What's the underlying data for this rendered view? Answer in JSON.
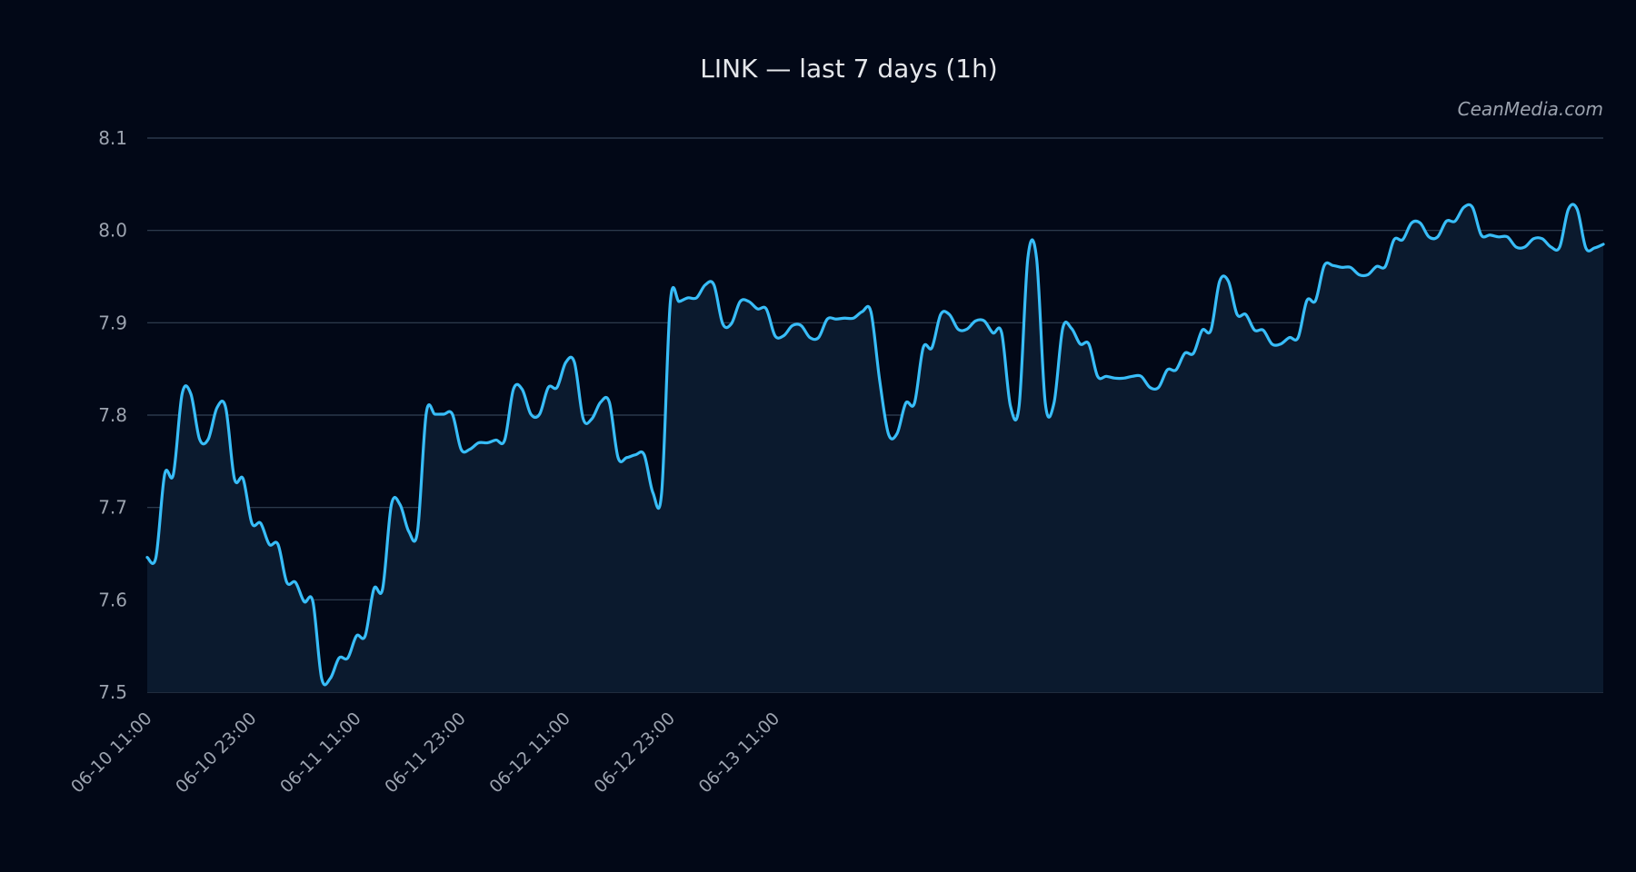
{
  "chart_data": {
    "type": "area",
    "title": "LINK — last 7 days (1h)",
    "watermark": "CeanMedia.com",
    "xlabel": "",
    "ylabel": "",
    "ylim": [
      7.5,
      8.1
    ],
    "yticks": [
      7.5,
      7.6,
      7.7,
      7.8,
      7.9,
      8.0,
      8.1
    ],
    "ytick_labels": [
      "7.5",
      "7.6",
      "7.7",
      "7.8",
      "7.9",
      "8.0",
      "8.1"
    ],
    "x_start": "06-10 11:00",
    "x_interval_hours": 1,
    "xtick_labels": [
      "06-10 11:00",
      "06-10 23:00",
      "06-11 11:00",
      "06-11 23:00",
      "06-12 11:00",
      "06-12 23:00",
      "06-13 11:00"
    ],
    "xtick_step_hours": 12,
    "grid": true,
    "colors": {
      "line": "#38bdf8",
      "fill": "#0b1a2e",
      "background": "#020817",
      "grid": "#334155"
    },
    "series": [
      {
        "values": [
          7.646,
          7.646,
          7.736,
          7.736,
          7.823,
          7.823,
          7.774,
          7.774,
          7.808,
          7.808,
          7.731,
          7.731,
          7.683,
          7.683,
          7.66,
          7.66,
          7.619,
          7.619,
          7.598,
          7.598,
          7.515,
          7.515,
          7.537,
          7.537,
          7.561,
          7.561,
          7.612,
          7.612,
          7.703,
          7.703,
          7.674,
          7.674,
          7.802,
          7.801,
          7.801,
          7.801,
          7.763,
          7.763,
          7.77,
          7.77,
          7.773,
          7.773,
          7.828,
          7.828,
          7.801,
          7.801,
          7.83,
          7.83,
          7.857,
          7.857,
          7.796,
          7.796,
          7.814,
          7.814,
          7.754,
          7.754,
          7.757,
          7.757,
          7.716,
          7.716,
          7.923,
          7.923,
          7.927,
          7.927,
          7.941,
          7.941,
          7.899,
          7.899,
          7.923,
          7.923,
          7.915,
          7.915,
          7.886,
          7.886,
          7.897,
          7.897,
          7.884,
          7.884,
          7.904,
          7.904,
          7.905,
          7.905,
          7.912,
          7.912,
          7.838,
          7.78,
          7.78,
          7.813,
          7.813,
          7.873,
          7.873,
          7.909,
          7.909,
          7.893,
          7.893,
          7.902,
          7.902,
          7.889,
          7.889,
          7.81,
          7.81,
          7.97,
          7.97,
          7.813,
          7.813,
          7.894,
          7.894,
          7.877,
          7.877,
          7.842,
          7.842,
          7.84,
          7.84,
          7.842,
          7.842,
          7.83,
          7.83,
          7.849,
          7.849,
          7.867,
          7.867,
          7.892,
          7.892,
          7.945,
          7.945,
          7.909,
          7.909,
          7.892,
          7.892,
          7.877,
          7.877,
          7.884,
          7.884,
          7.924,
          7.924,
          7.962,
          7.962,
          7.96,
          7.96,
          7.952,
          7.952,
          7.961,
          7.961,
          7.99,
          7.99,
          8.008,
          8.008,
          7.993,
          7.993,
          8.01,
          8.01,
          8.025,
          8.025,
          7.995,
          7.995,
          7.993,
          7.993,
          7.982,
          7.982,
          7.991,
          7.991,
          7.982,
          7.982,
          8.023,
          8.023,
          7.981,
          7.981,
          7.985
        ]
      }
    ]
  }
}
